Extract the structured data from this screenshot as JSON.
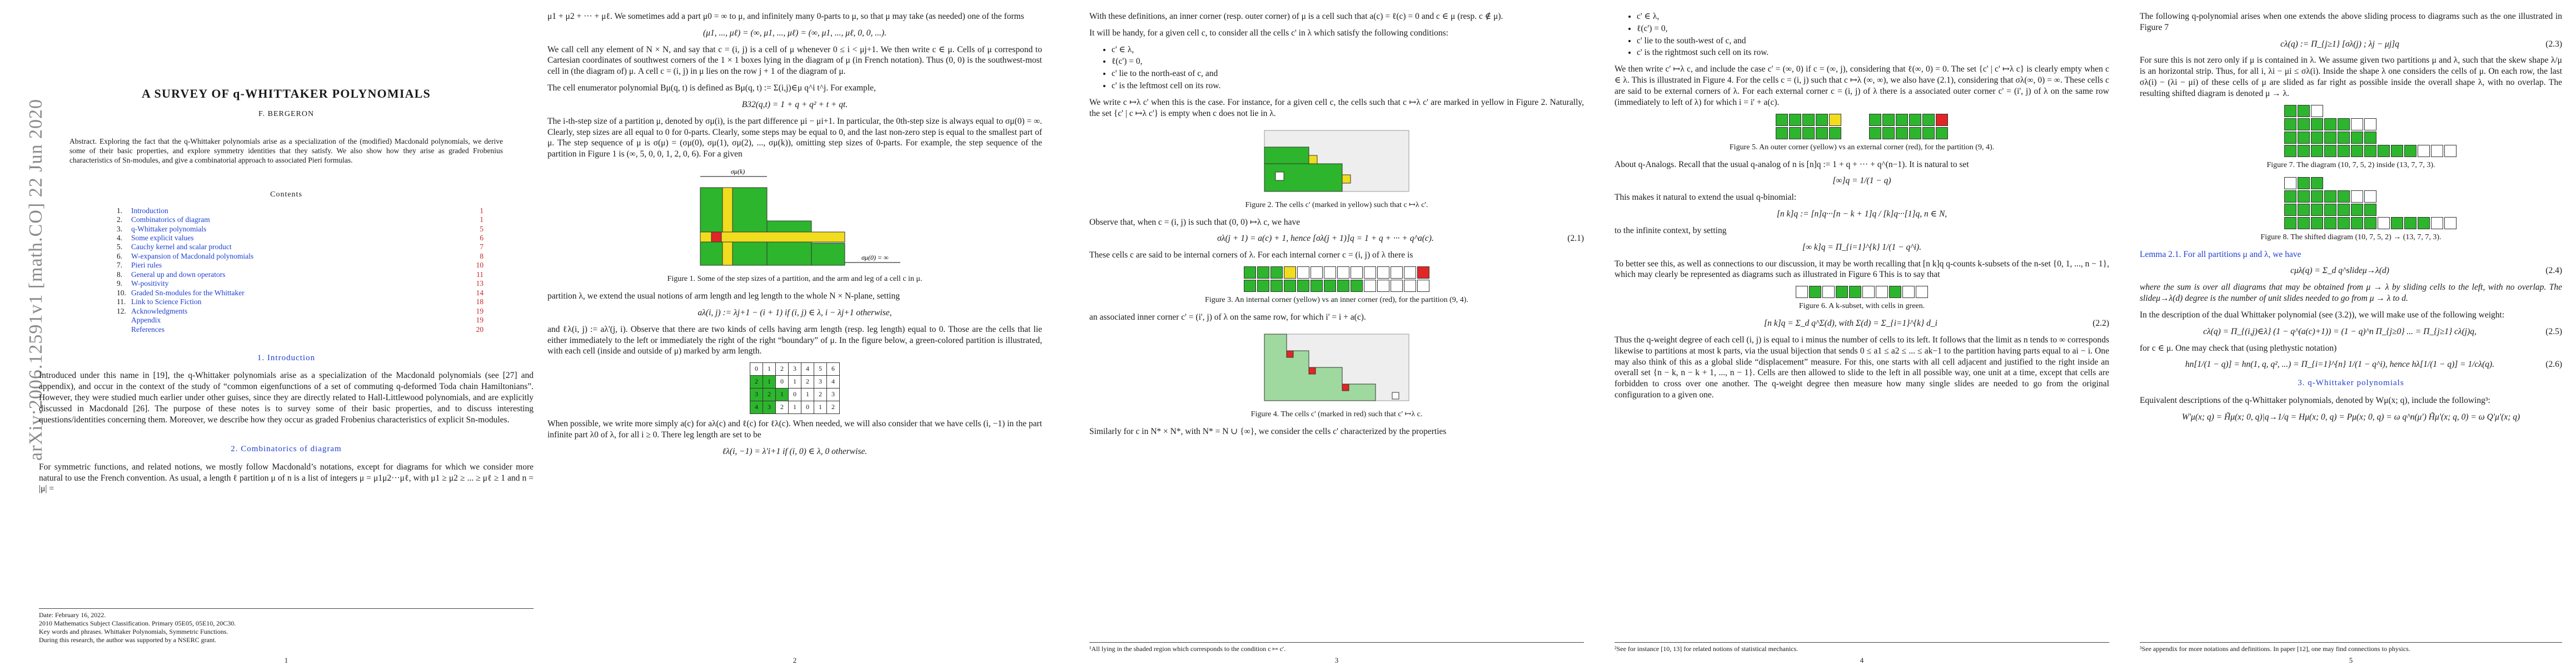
{
  "arxiv_stamp": "arXiv:2006.12591v1  [math.CO]  22 Jun 2020",
  "page1": {
    "title": "A SURVEY OF q-WHITTAKER POLYNOMIALS",
    "author": "F. BERGERON",
    "abstract": "Abstract. Exploring the fact that the q-Whittaker polynomials arise as a specialization of the (modified) Macdonald polynomials, we derive some of their basic properties, and explore symmetry identities that they satisfy. We also show how they arise as graded Frobenius characteristics of Sn-modules, and give a combinatorial approach to associated Pieri formulas.",
    "contents_title": "Contents",
    "toc": [
      {
        "num": "1.",
        "label": "Introduction",
        "page": "1"
      },
      {
        "num": "2.",
        "label": "Combinatorics of diagram",
        "page": "1"
      },
      {
        "num": "3.",
        "label": "q-Whittaker polynomials",
        "page": "5"
      },
      {
        "num": "4.",
        "label": "Some explicit values",
        "page": "6"
      },
      {
        "num": "5.",
        "label": "Cauchy kernel and scalar product",
        "page": "7"
      },
      {
        "num": "6.",
        "label": "W-expansion of Macdonald polynomials",
        "page": "8"
      },
      {
        "num": "7.",
        "label": "Pieri rules",
        "page": "10"
      },
      {
        "num": "8.",
        "label": "General up and down operators",
        "page": "11"
      },
      {
        "num": "9.",
        "label": "W-positivity",
        "page": "13"
      },
      {
        "num": "10.",
        "label": "Graded Sn-modules for the Whittaker",
        "page": "14"
      },
      {
        "num": "11.",
        "label": "Link to Science Fiction",
        "page": "18"
      },
      {
        "num": "12.",
        "label": "Acknowledgments",
        "page": "19"
      },
      {
        "num": "",
        "label": "Appendix",
        "page": "19"
      },
      {
        "num": "",
        "label": "References",
        "page": "20"
      }
    ],
    "sec1_heading": "1. Introduction",
    "sec1_text": "Introduced under this name in [19], the q-Whittaker polynomials arise as a specialization of the Macdonald polynomials (see [27] and appendix), and occur in the context of the study of “common eigenfunctions of a set of commuting q-deformed Toda chain Hamiltonians”. However, they were studied much earlier under other guises, since they are directly related to Hall-Littlewood polynomials, and are explicitly discussed in Macdonald [26]. The purpose of these notes is to survey some of their basic properties, and to discuss interesting questions/identities concerning them. Moreover, we describe how they occur as graded Frobenius characteristics of explicit Sn-modules.",
    "sec2_heading": "2. Combinatorics of diagram",
    "sec2_text": "For symmetric functions, and related notions, we mostly follow Macdonald’s notations, except for diagrams for which we consider more natural to use the French convention. As usual, a length ℓ partition μ of n is a list of integers μ = μ1μ2···μℓ, with μ1 ≥ μ2 ≥ ... ≥ μℓ ≥ 1 and n = |μ| =",
    "footnote": "Date: February 16, 2022.\n2010 Mathematics Subject Classification. Primary 05E05, 05E10, 20C30.\nKey words and phrases. Whittaker Polynomials, Symmetric Functions.\nDuring this research, the author was supported by a NSERC grant.",
    "page_number": "1"
  },
  "page2": {
    "text1": "μ1 + μ2 + ··· + μℓ. We sometimes add a part μ0 = ∞ to μ, and infinitely many 0-parts to μ, so that μ may take (as needed) one of the forms",
    "text2": "We call cell any element of N × N, and say that c = (i, j) is a cell of μ whenever 0 ≤ i < μj+1. We then write c ∈ μ. Cells of μ correspond to Cartesian coordinates of southwest corners of the 1 × 1 boxes lying in the diagram of μ (in French notation). Thus (0, 0) is the southwest-most cell in (the diagram of) μ. A cell c = (i, j) in μ lies on the row j + 1 of the diagram of μ.",
    "text3": "The cell enumerator polynomial Bμ(q, t) is defined as Bμ(q, t) := Σ(i,j)∈μ q^i t^j. For example,",
    "eq_b": "B32(q,t) = 1 + q + q² + t + qt.",
    "text4": "The i-th-step size of a partition μ, denoted by σμ(i), is the part difference μi − μi+1. In particular, the 0th-step size is always equal to σμ(0) = ∞. Clearly, step sizes are all equal to 0 for 0-parts. Clearly, some steps may be equal to 0, and the last non-zero step is equal to the smallest part of μ. The step sequence of μ is σ(μ) = (σμ(0), σμ(1), σμ(2), ..., σμ(k)), omitting step sizes of 0-parts. For example, the step sequence of the partition in Figure 1 is (∞, 5, 0, 0, 1, 2, 0, 6). For a given",
    "fig1_caption": "Figure 1. Some of the step sizes of a partition, and the arm and leg of a cell c in μ.",
    "text5": "partition λ, we extend the usual notions of arm length and leg length to the whole N × N-plane, setting",
    "eq_a": "aλ(i, j) := λj+1 − (i + 1) if (i, j) ∈ λ, i − λj+1 otherwise,",
    "text6": "and ℓλ(i, j) := aλ'(j, i). Observe that there are two kinds of cells having arm length (resp. leg length) equal to 0. Those are the cells that lie either immediately to the left or immediately the right of the right “boundary” of μ. In the figure below, a green-colored partition is illustrated, with each cell (inside and outside of μ) marked by arm length.",
    "table_rows": [
      [
        "0",
        "1",
        "2",
        "3",
        "4",
        "5",
        "6"
      ],
      [
        "2",
        "1",
        "0",
        "1",
        "2",
        "3",
        "4"
      ],
      [
        "3",
        "2",
        "1",
        "0",
        "1",
        "2",
        "3"
      ],
      [
        "4",
        "3",
        "2",
        "1",
        "0",
        "1",
        "2"
      ]
    ],
    "text7": "When possible, we write more simply a(c) for aλ(c) and ℓ(c) for ℓλ(c). When needed, we will also consider that we have cells (i, −1) in the part infinite part λ0 of λ, for all i ≥ 0. There leg length are set to be",
    "eq_l": "ℓλ(i, −1) = λ'i+1 if (i, 0) ∈ λ, 0 otherwise.",
    "page_number": "2"
  },
  "page3": {
    "text1": "With these definitions, an inner corner (resp. outer corner) of μ is a cell such that a(c) = ℓ(c) = 0 and c ∈ μ (resp. c ∉ μ).",
    "text2": "It will be handy, for a given cell c, to consider all the cells c' in λ which satisfy the following conditions:",
    "bullets": [
      "c' ∈ λ,",
      "ℓ(c') = 0,",
      "c' lie to the north-east of c, and",
      "c' is the leftmost cell on its row."
    ],
    "text3": "We write c ↦λ c' when this is the case. For instance, for a given cell c, the cells such that c ↦λ c' are marked in yellow in Figure 2. Naturally, the set {c' | c ↦λ c'} is empty when c does not lie in λ.",
    "fig2_caption": "Figure 2. The cells c' (marked in yellow) such that c ↦λ c'.",
    "text4": "Observe that, when c = (i, j) is such that (0, 0) ↦λ c, we have",
    "eq1": "σλ(j + 1) = a(c) + 1, hence [σλ(j + 1)]q = 1 + q + ··· + q^a(c).",
    "eqnum1": "(2.1)",
    "text5": "These cells c are said to be internal corners of λ. For each internal corner c = (i, j) of λ there is",
    "fig3_caption": "Figure 3. An internal corner (yellow) vs an inner corner (red), for the partition (9, 4).",
    "text6": "an associated inner corner c' = (i', j) of λ on the same row, for which i' = i + a(c).",
    "fig4_caption": "Figure 4. The cells c' (marked in red) such that c' ↦λ c.",
    "text7": "Similarly for c in N* × N*, with N* = N ∪ {∞}, we consider the cells c' characterized by the properties",
    "footnote": "¹All lying in the shaded region which corresponds to the condition c ↦ c'.",
    "page_number": "3"
  },
  "page4": {
    "bullets": [
      "c' ∈ λ,",
      "ℓ(c') = 0,",
      "c' lie to the south-west of c, and",
      "c' is the rightmost such cell on its row."
    ],
    "text1": "We then write c' ↦λ c, and include the case c' = (∞, 0) if c = (∞, j), considering that ℓ(∞, 0) = 0. The set {c' | c' ↦λ c} is clearly empty when c ∈ λ. This is illustrated in Figure 4. For the cells c = (i, j) such that c ↦λ (∞, ∞), we also have (2.1), considering that σλ(∞, 0) = ∞. These cells c are said to be external corners of λ. For each external corner c = (i, j) of λ there is a associated outer corner c' = (i', j) of λ on the same row (immediately to left of λ) for which i = i' + a(c).",
    "fig5_caption": "Figure 5. An outer corner (yellow) vs an external corner (red), for the partition (9, 4).",
    "text2": "About q-Analogs. Recall that the usual q-analog of n is [n]q := 1 + q + ··· + q^(n−1). It is natural to set",
    "eq_inf": "[∞]q = 1/(1 − q)",
    "text3": "This makes it natural to extend the usual q-binomial:",
    "eq_binom": "[n k]q := [n]q···[n − k + 1]q / [k]q···[1]q,  n ∈ N,",
    "text4": "to the infinite context, by setting",
    "eq_binom_inf": "[∞ k]q = Π_{i=1}^{k} 1/(1 − q^i).",
    "text5": "To better see this, as well as connections to our discussion, it may be worth recalling that [n k]q q-counts k-subsets of the n-set {0, 1, ..., n − 1}, which may clearly be represented as diagrams such as illustrated in Figure 6 This is to say that",
    "fig6_caption": "Figure 6. A k-subset, with cells in green.",
    "eq22": "[n k]q = Σ_d q^Σ(d),  with  Σ(d) = Σ_{i=1}^{k} d_i",
    "eqnum22": "(2.2)",
    "text6": "Thus the q-weight degree of each cell (i, j) is equal to i minus the number of cells to its left. It follows that the limit as n tends to ∞ corresponds likewise to partitions at most k parts, via the usual bijection that sends 0 ≤ a1 ≤ a2 ≤ ... ≤ ak−1 to the partition having parts equal to ai − i. One may also think of this as a global slide “displacement” measure. For this, one starts with all cell adjacent and justified to the right inside an overall set {n − k, n − k + 1, ..., n − 1}. Cells are then allowed to slide to the left in all possible way, one unit at a time, except that cells are forbidden to cross over one another. The q-weight degree then measure how many single slides are needed to go from the original configuration to a given one.",
    "footnote": "²See for instance [10, 13] for related notions of statistical mechanics.",
    "page_number": "4"
  },
  "page5": {
    "text1": "The following q-polynomial arises when one extends the above sliding process to diagrams such as the one illustrated in Figure 7",
    "eq23": "cλ(q) := Π_{j≥1} [σλ(j) ; λj − μj]q",
    "eqnum23": "(2.3)",
    "text2": "For sure this is not zero only if μ is contained in λ. We assume given two partitions μ and λ, such that the skew shape λ/μ is an horizontal strip. Thus, for all i, λi − μi ≤ σλ(i). Inside the shape λ one considers the cells of μ. On each row, the last σλ(i) − (λi − μi) of these cells of μ are slided as far right as possible inside the overall shape λ, with no overlap. The resulting shifted diagram is denoted μ → λ.",
    "fig7_caption": "Figure 7. The diagram (10, 7, 5, 2) inside (13, 7, 7, 3).",
    "fig8_caption": "Figure 8. The shifted diagram (10, 7, 5, 2) → (13, 7, 7, 3).",
    "lemma": "Lemma 2.1. For all partitions μ and λ, we have",
    "eq24": "cμλ(q) = Σ_d q^slideμ→λ(d)",
    "eqnum24": "(2.4)",
    "text3": "where the sum is over all diagrams that may be obtained from μ → λ by sliding cells to the left, with no overlap. The slideμ→λ(d) degree is the number of unit slides needed to go from μ → λ to d.",
    "text4": "In the description of the dual Whittaker polynomial (see (3.2)), we will make use of the following weight:",
    "eq25": "cλ(q) = Π_{(i,j)∈λ} (1 − q^(a(c)+1)) = (1 − q)^n Π_{j≥0} ... = Π_{j≥1} cλ(j)q,",
    "eqnum25": "(2.5)",
    "text5": "for c ∈ μ. One may check that (using plethystic notation)",
    "eq26": "hn[1/(1 − q)] = hn(1, q, q², ...) = Π_{i=1}^{n} 1/(1 − q^i),  hence  hλ[1/(1 − q)] = 1/cλ(q).",
    "eqnum26": "(2.6)",
    "sec3_heading": "3. q-Whittaker polynomials",
    "text6": "Equivalent descriptions of the q-Whittaker polynomials, denoted by Wμ(x; q), include the following³:",
    "eq_last": "W'μ(x; q) = H̃μ(x; 0, q)|q→1/q = Hμ(x; 0, q) = Pμ(x; 0, q) = ω q^n(μ') H̃μ'(x; q, 0) = ω Q'μ'(x; q)",
    "footnote": "³See appendix for more notations and definitions. In paper [12], one may find connections to physics.",
    "page_number": "5"
  }
}
